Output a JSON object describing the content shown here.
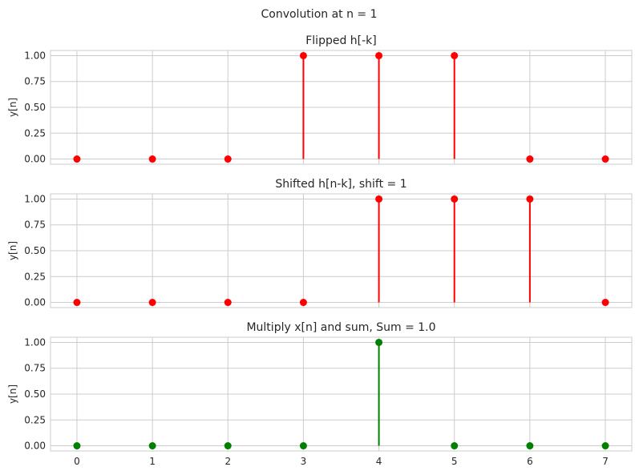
{
  "figure": {
    "suptitle": "Convolution at n = 1"
  },
  "chart_data": [
    {
      "type": "stem",
      "title": "Flipped h[-k]",
      "xlabel": "",
      "ylabel": "y[n]",
      "x": [
        0,
        1,
        2,
        3,
        4,
        5,
        6,
        7
      ],
      "values": [
        0,
        0,
        0,
        1,
        1,
        1,
        0,
        0
      ],
      "color": "#ff0000",
      "xlim": [
        -0.35,
        7.35
      ],
      "ylim": [
        -0.05,
        1.05
      ],
      "yticks": [
        "0.00",
        "0.25",
        "0.50",
        "0.75",
        "1.00"
      ],
      "xticks": [],
      "grid": true
    },
    {
      "type": "stem",
      "title": "Shifted h[n-k], shift = 1",
      "xlabel": "",
      "ylabel": "y[n]",
      "x": [
        0,
        1,
        2,
        3,
        4,
        5,
        6,
        7
      ],
      "values": [
        0,
        0,
        0,
        0,
        1,
        1,
        1,
        0
      ],
      "color": "#ff0000",
      "xlim": [
        -0.35,
        7.35
      ],
      "ylim": [
        -0.05,
        1.05
      ],
      "yticks": [
        "0.00",
        "0.25",
        "0.50",
        "0.75",
        "1.00"
      ],
      "xticks": [],
      "grid": true
    },
    {
      "type": "stem",
      "title": "Multiply x[n] and sum, Sum = 1.0",
      "xlabel": "",
      "ylabel": "y[n]",
      "x": [
        0,
        1,
        2,
        3,
        4,
        5,
        6,
        7
      ],
      "values": [
        0,
        0,
        0,
        0,
        1,
        0,
        0,
        0
      ],
      "color": "#008000",
      "xlim": [
        -0.35,
        7.35
      ],
      "ylim": [
        -0.05,
        1.05
      ],
      "yticks": [
        "0.00",
        "0.25",
        "0.50",
        "0.75",
        "1.00"
      ],
      "xticks": [
        "0",
        "1",
        "2",
        "3",
        "4",
        "5",
        "6",
        "7"
      ],
      "grid": true
    }
  ]
}
